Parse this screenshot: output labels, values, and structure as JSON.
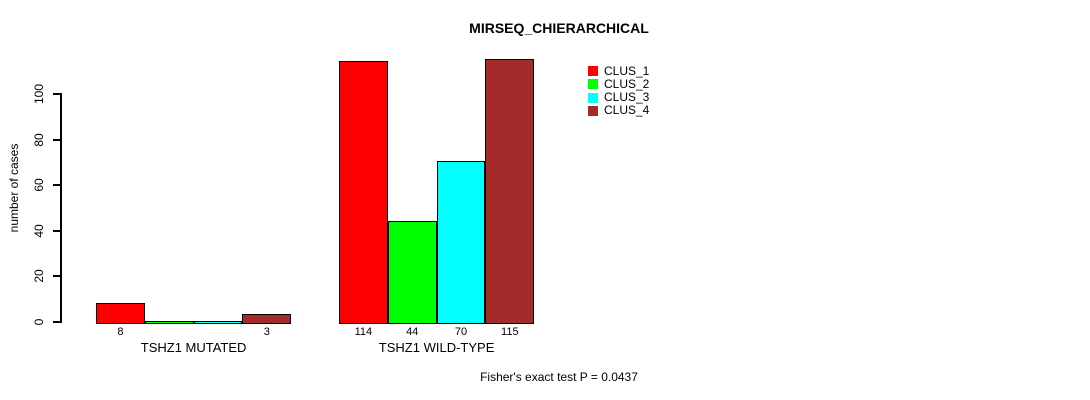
{
  "chart_data": {
    "type": "bar",
    "title": "MIRSEQ_CHIERARCHICAL",
    "ylabel": "number of cases",
    "xlabel": "",
    "ylim": [
      0,
      100
    ],
    "yticks": [
      0,
      20,
      40,
      60,
      80,
      100
    ],
    "grid": false,
    "legend_position": "top-right",
    "bar_border_color": "#000000",
    "background_color": "#ffffff",
    "categories": [
      "TSHZ1 MUTATED",
      "TSHZ1 WILD-TYPE"
    ],
    "series": [
      {
        "name": "CLUS_1",
        "color": "#ff0000",
        "values": [
          8,
          114
        ]
      },
      {
        "name": "CLUS_2",
        "color": "#00ff00",
        "values": [
          0,
          44
        ]
      },
      {
        "name": "CLUS_3",
        "color": "#00ffff",
        "values": [
          0,
          70
        ]
      },
      {
        "name": "CLUS_4",
        "color": "#a52a2a",
        "values": [
          3,
          115
        ]
      }
    ],
    "bar_value_labels": [
      [
        "8",
        "",
        "",
        "3"
      ],
      [
        "114",
        "44",
        "70",
        "115"
      ]
    ],
    "annotation": "Fisher's exact test P = 0.0437"
  }
}
